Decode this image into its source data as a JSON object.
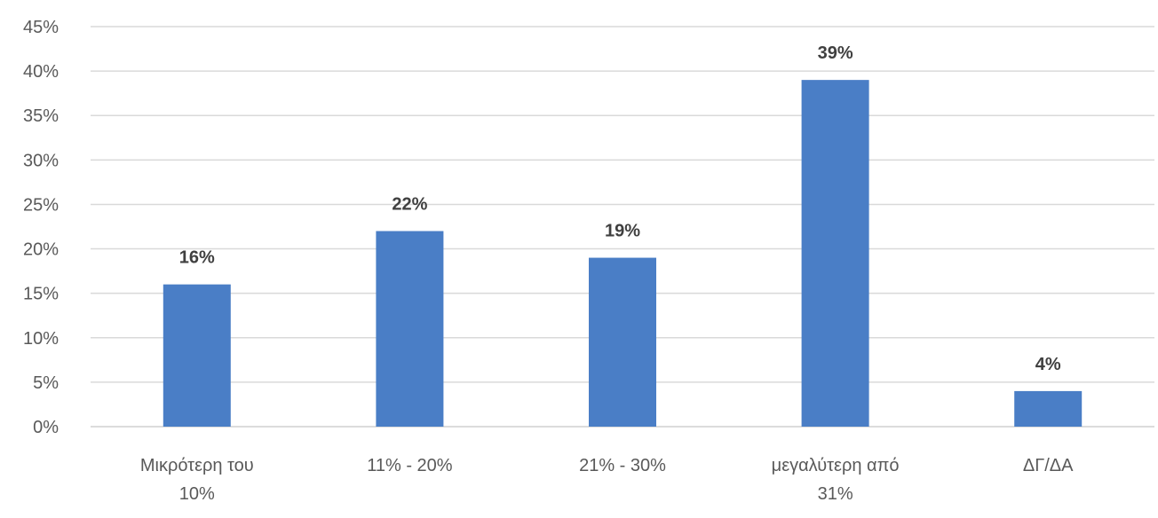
{
  "chart_data": {
    "type": "bar",
    "categories": [
      [
        "Μικρότερη του",
        "10%"
      ],
      [
        "11% - 20%"
      ],
      [
        "21% - 30%"
      ],
      [
        "μεγαλύτερη από",
        "31%"
      ],
      [
        "ΔΓ/ΔΑ"
      ]
    ],
    "values": [
      16,
      22,
      19,
      39,
      4
    ],
    "data_labels": [
      "16%",
      "22%",
      "19%",
      "39%",
      "4%"
    ],
    "ylim": [
      0,
      45
    ],
    "y_ticks": [
      0,
      5,
      10,
      15,
      20,
      25,
      30,
      35,
      40,
      45
    ],
    "y_tick_labels": [
      "0%",
      "5%",
      "10%",
      "15%",
      "20%",
      "25%",
      "30%",
      "35%",
      "40%",
      "45%"
    ],
    "grid": true,
    "bar_color": "#4a7ec6",
    "title": "",
    "xlabel": "",
    "ylabel": ""
  }
}
